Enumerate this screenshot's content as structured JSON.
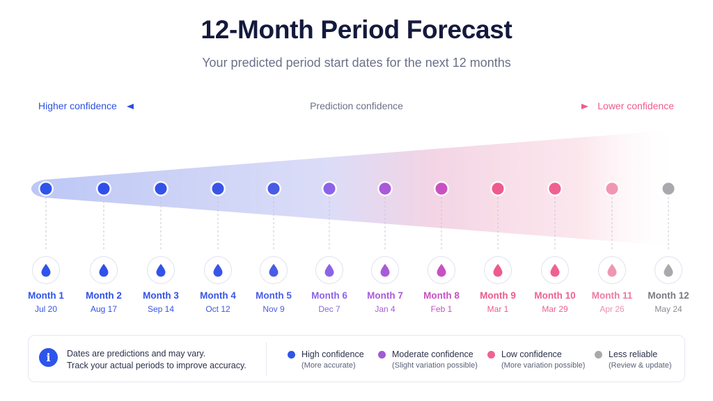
{
  "header": {
    "title": "12-Month Period Forecast",
    "subtitle": "Your predicted period start dates for the next 12 months"
  },
  "confidence_scale": {
    "higher": "Higher confidence",
    "middle": "Prediction confidence",
    "lower": "Lower confidence"
  },
  "months": [
    {
      "label": "Month 1",
      "date": "Jul 20",
      "color": "#2f54eb",
      "icon": "drop-icon"
    },
    {
      "label": "Month 2",
      "date": "Aug 17",
      "color": "#3050ea",
      "icon": "drop-icon"
    },
    {
      "label": "Month 3",
      "date": "Sep 14",
      "color": "#3352e8",
      "icon": "drop-icon"
    },
    {
      "label": "Month 4",
      "date": "Oct 12",
      "color": "#3a55e6",
      "icon": "drop-icon"
    },
    {
      "label": "Month 5",
      "date": "Nov 9",
      "color": "#4a5ce6",
      "icon": "drop-icon"
    },
    {
      "label": "Month 6",
      "date": "Dec 7",
      "color": "#8c63e6",
      "icon": "drop-icon"
    },
    {
      "label": "Month 7",
      "date": "Jan 4",
      "color": "#a85ad8",
      "icon": "drop-icon"
    },
    {
      "label": "Month 8",
      "date": "Feb 1",
      "color": "#c851c2",
      "icon": "drop-icon"
    },
    {
      "label": "Month 9",
      "date": "Mar 1",
      "color": "#ee5a8c",
      "icon": "drop-icon"
    },
    {
      "label": "Month 10",
      "date": "Mar 29",
      "color": "#ef6190",
      "icon": "drop-icon"
    },
    {
      "label": "Month 11",
      "date": "Apr 26",
      "color": "#f196b2",
      "icon": "drop-icon"
    },
    {
      "label": "Month 12",
      "date": "May 24",
      "color": "#a9a9ad",
      "icon": "drop-icon"
    }
  ],
  "info": {
    "icon": "info-icon",
    "line1": "Dates are predictions and may vary.",
    "line2": "Track your actual periods to improve accuracy."
  },
  "legend": [
    {
      "title": "High confidence",
      "sub": "(More accurate)",
      "color": "#2f54eb"
    },
    {
      "title": "Moderate confidence",
      "sub": "(Slight variation possible)",
      "color": "#a05ad6"
    },
    {
      "title": "Low confidence",
      "sub": "(More variation possible)",
      "color": "#f06292"
    },
    {
      "title": "Less reliable",
      "sub": "(Review & update)",
      "color": "#a9a9ad"
    }
  ]
}
